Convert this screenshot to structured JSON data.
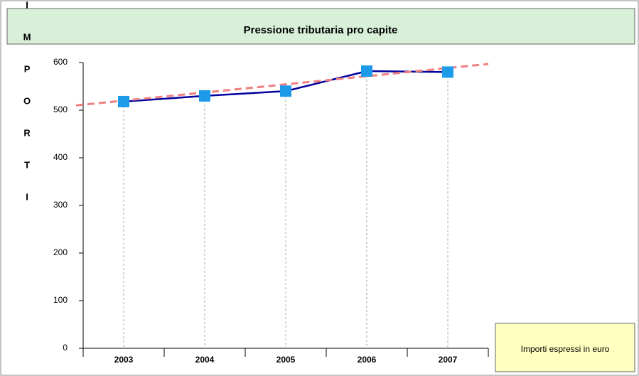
{
  "chart_data": {
    "type": "line",
    "title": "Pressione tributaria pro capite",
    "y_label": "IMPORTI",
    "note": "Importi espressi in euro",
    "categories": [
      "2003",
      "2004",
      "2005",
      "2006",
      "2007"
    ],
    "series": [
      {
        "color": "#0000a0",
        "marker_color": "#1e9be8",
        "values": [
          518,
          530,
          540,
          582,
          580
        ]
      }
    ],
    "trendline": {
      "color": "#f08080",
      "start": 510,
      "end": 597
    },
    "ylim": [
      0,
      600
    ],
    "yticks": [
      0,
      100,
      200,
      300,
      400,
      500,
      600
    ],
    "grid": "x"
  }
}
